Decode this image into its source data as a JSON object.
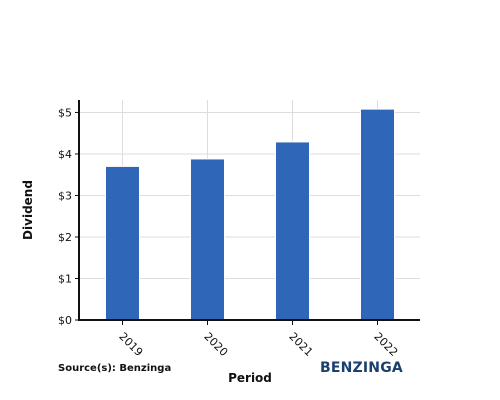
{
  "chart_data": {
    "type": "bar",
    "categories": [
      "2019",
      "2020",
      "2021",
      "2022"
    ],
    "values": [
      3.7,
      3.88,
      4.29,
      5.08
    ],
    "xlabel": "Period",
    "ylabel": "Dividend",
    "ylim": [
      0,
      5.3
    ],
    "y_ticks": [
      0,
      1,
      2,
      3,
      4,
      5
    ],
    "y_tick_labels": [
      "$0",
      "$1",
      "$2",
      "$3",
      "$4",
      "$5"
    ],
    "grid": true,
    "bar_color": "#2f66b8"
  },
  "footer": {
    "source": "Source(s): Benzinga",
    "brand": "BENZINGA",
    "brand_color": "#1b3f6e"
  }
}
